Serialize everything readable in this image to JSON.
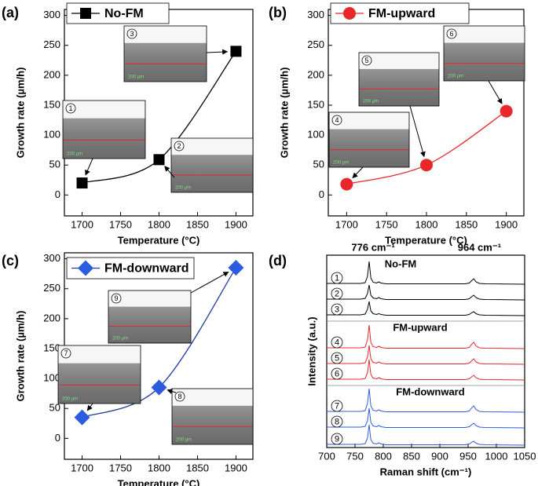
{
  "chart_data": [
    {
      "type": "line",
      "panel_label": "(a)",
      "xlabel": "Temperature (°C)",
      "ylabel": "Growth rate (µm/h)",
      "x": [
        1700,
        1800,
        1900
      ],
      "xlim": [
        1677,
        1922
      ],
      "xticks": [
        1700,
        1750,
        1800,
        1850,
        1900
      ],
      "ylim": [
        -35,
        310
      ],
      "yticks": [
        0,
        50,
        100,
        150,
        200,
        250,
        300
      ],
      "series": [
        {
          "name": "No-FM",
          "color": "#000000",
          "marker": "square",
          "values": [
            20,
            59,
            240
          ]
        }
      ],
      "insets": [
        {
          "label": "1",
          "scale_label": "200 µm"
        },
        {
          "label": "2",
          "scale_label": "200 µm"
        },
        {
          "label": "3",
          "scale_label": "200 µm"
        }
      ]
    },
    {
      "type": "line",
      "panel_label": "(b)",
      "xlabel": "Temperature (°C)",
      "ylabel": "Growth rate (µm/h)",
      "x": [
        1700,
        1800,
        1900
      ],
      "xlim": [
        1677,
        1922
      ],
      "xticks": [
        1700,
        1750,
        1800,
        1850,
        1900
      ],
      "ylim": [
        -35,
        310
      ],
      "yticks": [
        0,
        50,
        100,
        150,
        200,
        250,
        300
      ],
      "series": [
        {
          "name": "FM-upward",
          "color": "#e8272b",
          "marker": "circle",
          "values": [
            18,
            50,
            140
          ]
        }
      ],
      "insets": [
        {
          "label": "4",
          "scale_label": "200 µm"
        },
        {
          "label": "5",
          "scale_label": "200 µm"
        },
        {
          "label": "6",
          "scale_label": "200 µm"
        }
      ]
    },
    {
      "type": "line",
      "panel_label": "(c)",
      "xlabel": "Temperature (°C)",
      "ylabel": "Growth rate (µm/h)",
      "x": [
        1700,
        1800,
        1900
      ],
      "xlim": [
        1677,
        1922
      ],
      "xticks": [
        1700,
        1750,
        1800,
        1850,
        1900
      ],
      "ylim": [
        -35,
        310
      ],
      "yticks": [
        0,
        50,
        100,
        150,
        200,
        250,
        300
      ],
      "series": [
        {
          "name": "FM-downward",
          "color": "#2d5be0",
          "line_color": "#1f3a9e",
          "marker": "diamond",
          "values": [
            35,
            85,
            285
          ]
        }
      ],
      "insets": [
        {
          "label": "7",
          "scale_label": "200 µm"
        },
        {
          "label": "8",
          "scale_label": "200 µm"
        },
        {
          "label": "9",
          "scale_label": "200 µm"
        }
      ]
    },
    {
      "type": "spectra",
      "panel_label": "(d)",
      "xlabel": "Raman shift (cm⁻¹)",
      "ylabel": "Intensity (a.u.)",
      "xlim": [
        700,
        1050
      ],
      "xticks": [
        700,
        750,
        800,
        850,
        900,
        950,
        1000,
        1050
      ],
      "annotations": [
        {
          "text": "776 cm⁻¹",
          "x": 782
        },
        {
          "text": "964 cm⁻¹",
          "x": 970
        }
      ],
      "groups": [
        {
          "name": "No-FM"
        },
        {
          "name": "FM-upward"
        },
        {
          "name": "FM-downward"
        }
      ],
      "x": [
        700,
        760,
        768,
        772,
        775,
        778,
        782,
        788,
        792,
        796,
        805,
        945,
        952,
        957,
        960,
        964,
        970,
        980,
        1050
      ],
      "series": [
        {
          "name": "1",
          "color": "#000000",
          "values": [
            1,
            1,
            2,
            10,
            29,
            8,
            2.5,
            1.5,
            3,
            1.5,
            0.5,
            0.5,
            1.5,
            5,
            7,
            3,
            1,
            0.5,
            0
          ]
        },
        {
          "name": "2",
          "color": "#000000",
          "values": [
            1,
            1,
            2,
            8,
            19,
            6,
            2.5,
            1.5,
            3,
            1.5,
            0.5,
            0.5,
            1.5,
            4.5,
            6,
            3,
            1,
            0.5,
            0
          ]
        },
        {
          "name": "3",
          "color": "#000000",
          "values": [
            1,
            1,
            2,
            8,
            18,
            6,
            2.5,
            1.5,
            2.5,
            1.5,
            0.5,
            0.5,
            1.5,
            4,
            5,
            2.5,
            1,
            0.5,
            0
          ]
        },
        {
          "name": "4",
          "color": "#e8272b",
          "values": [
            1,
            1,
            2,
            11,
            30,
            8,
            2.5,
            1.5,
            3,
            1.5,
            0.5,
            0.5,
            1.5,
            6,
            8,
            3.5,
            1,
            0.5,
            0
          ]
        },
        {
          "name": "5",
          "color": "#e8272b",
          "values": [
            1,
            1,
            2,
            9,
            24,
            7,
            2.5,
            1.5,
            3,
            1.5,
            0.5,
            0.5,
            1.5,
            5,
            7,
            3,
            1,
            0.5,
            0
          ]
        },
        {
          "name": "6",
          "color": "#e8272b",
          "values": [
            1,
            1,
            2,
            9,
            26,
            7,
            2.5,
            1.5,
            3,
            1.5,
            0.5,
            0.5,
            1.5,
            4.5,
            6,
            3,
            1,
            0.5,
            0
          ]
        },
        {
          "name": "7",
          "color": "#2d5be0",
          "values": [
            1,
            1,
            2,
            11,
            30,
            8,
            2.5,
            1.5,
            3,
            1.5,
            0.5,
            0.5,
            1.5,
            6,
            8,
            3.5,
            1,
            0.5,
            0
          ]
        },
        {
          "name": "8",
          "color": "#2d5be0",
          "values": [
            1,
            1,
            2,
            9,
            25,
            7,
            2.5,
            1.5,
            3,
            1.5,
            0.5,
            0.5,
            1.5,
            4.5,
            6,
            3,
            1,
            0.5,
            0
          ]
        },
        {
          "name": "9",
          "color": "#2d5be0",
          "values": [
            1,
            1,
            2,
            9,
            26,
            7,
            2.5,
            1.5,
            3,
            1.5,
            0.5,
            0.5,
            1.5,
            4,
            5,
            2.5,
            1,
            0.5,
            0
          ]
        }
      ]
    }
  ]
}
